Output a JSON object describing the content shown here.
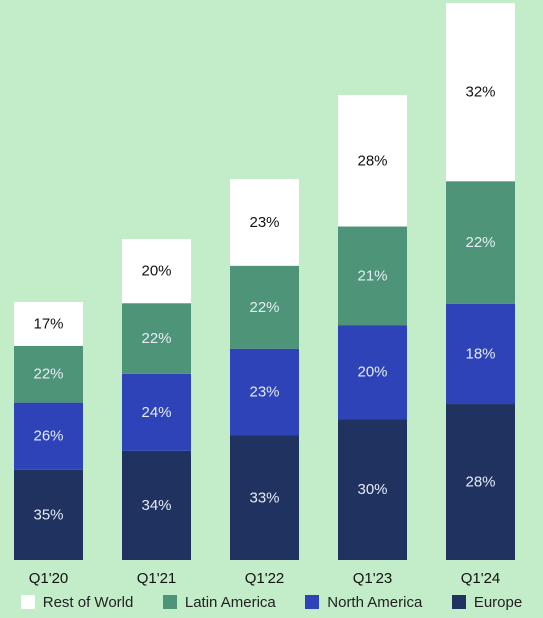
{
  "chart_data": {
    "type": "bar",
    "stacked": true,
    "categories": [
      "Q1'20",
      "Q1'21",
      "Q1'22",
      "Q1'23",
      "Q1'24"
    ],
    "series": [
      {
        "name": "Europe",
        "color": "#1f3260",
        "values": [
          35,
          34,
          33,
          30,
          28
        ],
        "labels": [
          "35%",
          "34%",
          "33%",
          "30%",
          "28%"
        ]
      },
      {
        "name": "North America",
        "color": "#2e43b8",
        "values": [
          26,
          24,
          23,
          20,
          18
        ],
        "labels": [
          "26%",
          "24%",
          "23%",
          "20%",
          "18%"
        ]
      },
      {
        "name": "Latin America",
        "color": "#4d9478",
        "values": [
          22,
          22,
          22,
          21,
          22
        ],
        "labels": [
          "22%",
          "22%",
          "22%",
          "21%",
          "22%"
        ]
      },
      {
        "name": "Rest of World",
        "color": "#ffffff",
        "values": [
          17,
          20,
          23,
          28,
          32
        ],
        "labels": [
          "17%",
          "20%",
          "23%",
          "28%",
          "32%"
        ]
      }
    ],
    "legend_order": [
      "Rest of World",
      "Latin America",
      "North America",
      "Europe"
    ],
    "legend_position": "bottom",
    "grid": false,
    "title": "",
    "xlabel": "",
    "ylabel": ""
  }
}
